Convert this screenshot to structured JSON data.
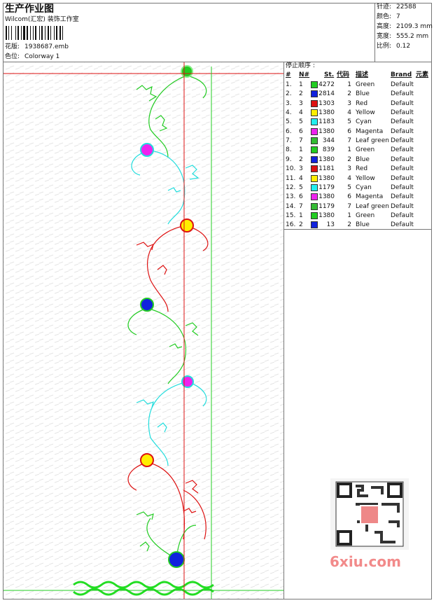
{
  "header": {
    "title": "生产作业图",
    "studio": "Wilcom(汇宏) 装饰工作室",
    "file": {
      "label": "花版:",
      "value": "1938687.emb"
    },
    "colorway": {
      "label": "色位:",
      "value": "Colorway 1"
    }
  },
  "stats": [
    {
      "label": "针迹:",
      "value": "22588"
    },
    {
      "label": "颜色:",
      "value": "7"
    },
    {
      "label": "高度:",
      "value": "2109.3 mm"
    },
    {
      "label": "宽度:",
      "value": "555.2 mm"
    },
    {
      "label": "比例:",
      "value": "0.12"
    }
  ],
  "table": {
    "title": "停止顺序 :",
    "columns": [
      "#",
      "N#",
      "St.",
      "代码",
      "描述",
      "Brand",
      "元素"
    ],
    "rows": [
      {
        "index": "1.",
        "needle": 1,
        "color": "#22cc22",
        "stitches": 4272,
        "code": 1,
        "description": "Green",
        "brand": "Default"
      },
      {
        "index": "2.",
        "needle": 2,
        "color": "#1122dd",
        "stitches": 2814,
        "code": 2,
        "description": "Blue",
        "brand": "Default"
      },
      {
        "index": "3.",
        "needle": 3,
        "color": "#dd1111",
        "stitches": 1303,
        "code": 3,
        "description": "Red",
        "brand": "Default"
      },
      {
        "index": "4.",
        "needle": 4,
        "color": "#ffee00",
        "stitches": 1380,
        "code": 4,
        "description": "Yellow",
        "brand": "Default"
      },
      {
        "index": "5.",
        "needle": 5,
        "color": "#22eeee",
        "stitches": 1183,
        "code": 5,
        "description": "Cyan",
        "brand": "Default"
      },
      {
        "index": "6.",
        "needle": 6,
        "color": "#ee22ee",
        "stitches": 1380,
        "code": 6,
        "description": "Magenta",
        "brand": "Default"
      },
      {
        "index": "7.",
        "needle": 7,
        "color": "#33bb33",
        "stitches": 344,
        "code": 7,
        "description": "Leaf green",
        "brand": "Default"
      },
      {
        "index": "8.",
        "needle": 1,
        "color": "#22cc22",
        "stitches": 839,
        "code": 1,
        "description": "Green",
        "brand": "Default"
      },
      {
        "index": "9.",
        "needle": 2,
        "color": "#1122dd",
        "stitches": 1380,
        "code": 2,
        "description": "Blue",
        "brand": "Default"
      },
      {
        "index": "10.",
        "needle": 3,
        "color": "#dd1111",
        "stitches": 1181,
        "code": 3,
        "description": "Red",
        "brand": "Default"
      },
      {
        "index": "11.",
        "needle": 4,
        "color": "#ffee00",
        "stitches": 1380,
        "code": 4,
        "description": "Yellow",
        "brand": "Default"
      },
      {
        "index": "12.",
        "needle": 5,
        "color": "#22eeee",
        "stitches": 1179,
        "code": 5,
        "description": "Cyan",
        "brand": "Default"
      },
      {
        "index": "13.",
        "needle": 6,
        "color": "#ee22ee",
        "stitches": 1380,
        "code": 6,
        "description": "Magenta",
        "brand": "Default"
      },
      {
        "index": "14.",
        "needle": 7,
        "color": "#33bb33",
        "stitches": 1179,
        "code": 7,
        "description": "Leaf green",
        "brand": "Default"
      },
      {
        "index": "15.",
        "needle": 1,
        "color": "#22cc22",
        "stitches": 1380,
        "code": 1,
        "description": "Green",
        "brand": "Default"
      },
      {
        "index": "16.",
        "needle": 2,
        "color": "#1122dd",
        "stitches": 13,
        "code": 2,
        "description": "Blue",
        "brand": "Default"
      }
    ]
  },
  "watermark": "6xiu.com"
}
